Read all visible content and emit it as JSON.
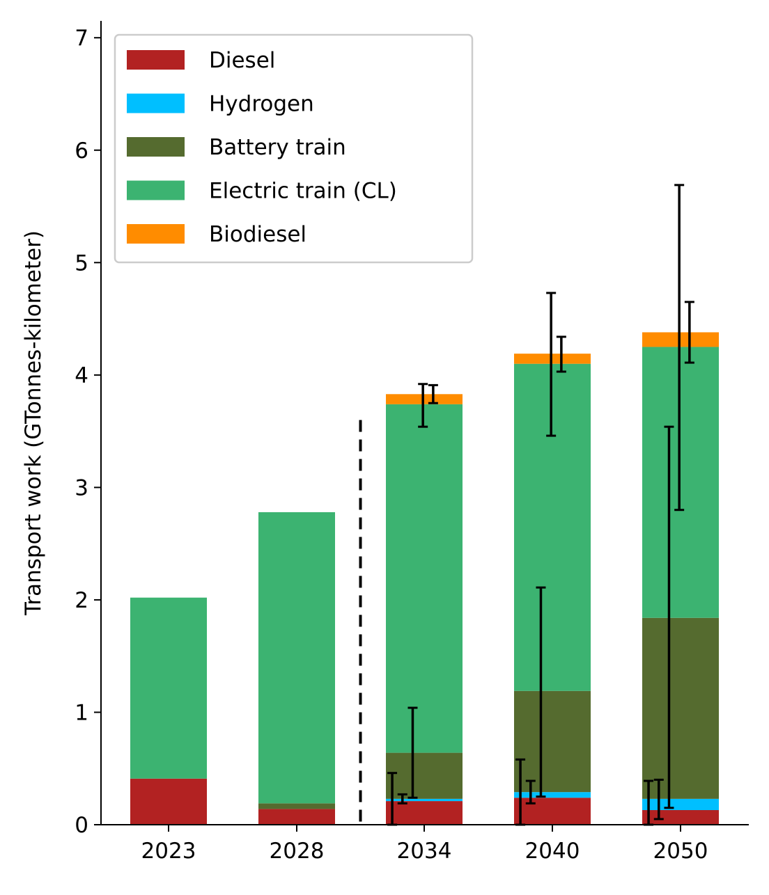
{
  "chart_data": {
    "type": "bar",
    "stacked": true,
    "categories": [
      "2023",
      "2028",
      "2034",
      "2040",
      "2050"
    ],
    "ylabel": "Transport work (GTonnes-kilometer)",
    "xlabel": "",
    "title": "",
    "ylim": [
      0,
      7.15
    ],
    "yticks": [
      0,
      1,
      2,
      3,
      4,
      5,
      6,
      7
    ],
    "grid": false,
    "legend_position": "top-left",
    "divider_after_category_index": 1,
    "series": [
      {
        "name": "Diesel",
        "color": "#b22222",
        "values": [
          0.41,
          0.14,
          0.21,
          0.24,
          0.13
        ]
      },
      {
        "name": "Hydrogen",
        "color": "#00bfff",
        "values": [
          0,
          0,
          0.02,
          0.05,
          0.1
        ]
      },
      {
        "name": "Battery train",
        "color": "#556b2f",
        "values": [
          0,
          0.05,
          0.41,
          0.9,
          1.61
        ]
      },
      {
        "name": "Electric train (CL)",
        "color": "#3cb371",
        "values": [
          1.61,
          2.59,
          3.1,
          2.91,
          2.41
        ]
      },
      {
        "name": "Biodiesel",
        "color": "#ff8c00",
        "values": [
          0,
          0,
          0.09,
          0.09,
          0.13
        ]
      }
    ],
    "error_bars": [
      {
        "category": "2034",
        "offset": -0.25,
        "low": 0.0,
        "high": 0.46
      },
      {
        "category": "2034",
        "offset": -0.17,
        "low": 0.19,
        "high": 0.27
      },
      {
        "category": "2034",
        "offset": -0.09,
        "low": 0.24,
        "high": 1.04
      },
      {
        "category": "2034",
        "offset": -0.01,
        "low": 3.54,
        "high": 3.92
      },
      {
        "category": "2034",
        "offset": 0.07,
        "low": 3.75,
        "high": 3.91
      },
      {
        "category": "2040",
        "offset": -0.25,
        "low": 0.0,
        "high": 0.58
      },
      {
        "category": "2040",
        "offset": -0.17,
        "low": 0.19,
        "high": 0.39
      },
      {
        "category": "2040",
        "offset": -0.09,
        "low": 0.25,
        "high": 2.11
      },
      {
        "category": "2040",
        "offset": -0.01,
        "low": 3.46,
        "high": 4.73
      },
      {
        "category": "2040",
        "offset": 0.07,
        "low": 4.03,
        "high": 4.34
      },
      {
        "category": "2050",
        "offset": -0.25,
        "low": 0.0,
        "high": 0.39
      },
      {
        "category": "2050",
        "offset": -0.17,
        "low": 0.05,
        "high": 0.4
      },
      {
        "category": "2050",
        "offset": -0.09,
        "low": 0.15,
        "high": 3.54
      },
      {
        "category": "2050",
        "offset": -0.01,
        "low": 2.8,
        "high": 5.69
      },
      {
        "category": "2050",
        "offset": 0.07,
        "low": 4.11,
        "high": 4.65
      }
    ]
  }
}
